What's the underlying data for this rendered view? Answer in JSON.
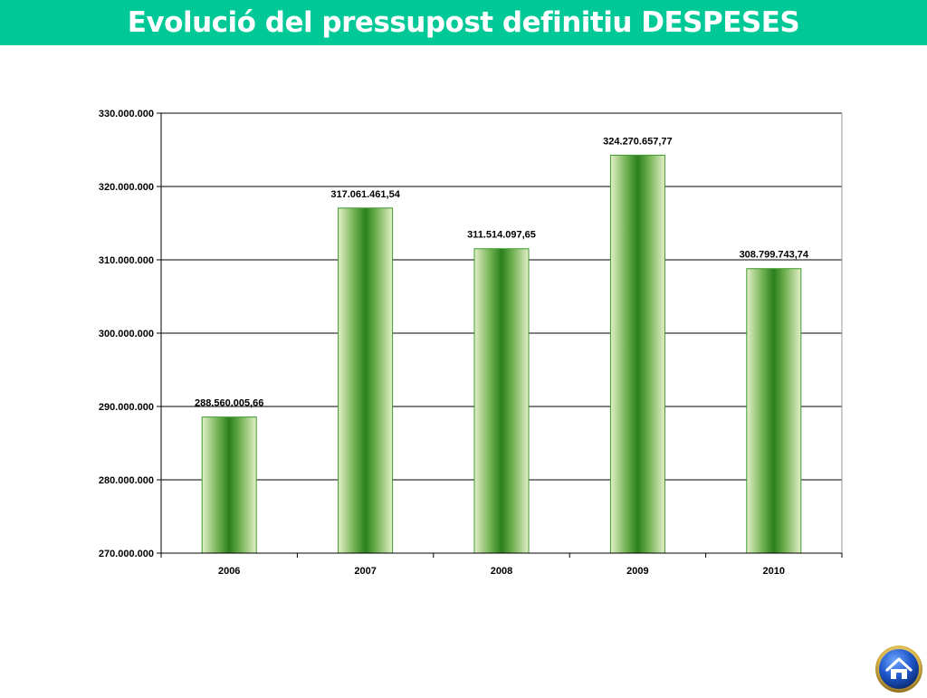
{
  "header": {
    "title": "Evolució del pressupost definitiu DESPESES"
  },
  "colors": {
    "header": "#00c896",
    "bar_dark": "#2a7f1e",
    "bar_mid": "#6fb04f",
    "bar_light": "#e4efc9",
    "bar_border": "#3d9a2c"
  },
  "home_button": {
    "icon": "home-icon"
  },
  "chart_data": {
    "type": "bar",
    "title": "",
    "xlabel": "",
    "ylabel": "",
    "categories": [
      "2006",
      "2007",
      "2008",
      "2009",
      "2010"
    ],
    "values": [
      288560005.66,
      317061461.54,
      311514097.65,
      324270657.77,
      308799743.74
    ],
    "data_labels": [
      "288.560.005,66",
      "317.061.461,54",
      "311.514.097,65",
      "324.270.657,77",
      "308.799.743,74"
    ],
    "ylim": [
      270000000,
      330000000
    ],
    "yticks": [
      270000000,
      280000000,
      290000000,
      300000000,
      310000000,
      320000000,
      330000000
    ],
    "ytick_labels": [
      "270.000.000",
      "280.000.000",
      "290.000.000",
      "300.000.000",
      "310.000.000",
      "320.000.000",
      "330.000.000"
    ],
    "grid": true,
    "legend": "none"
  }
}
